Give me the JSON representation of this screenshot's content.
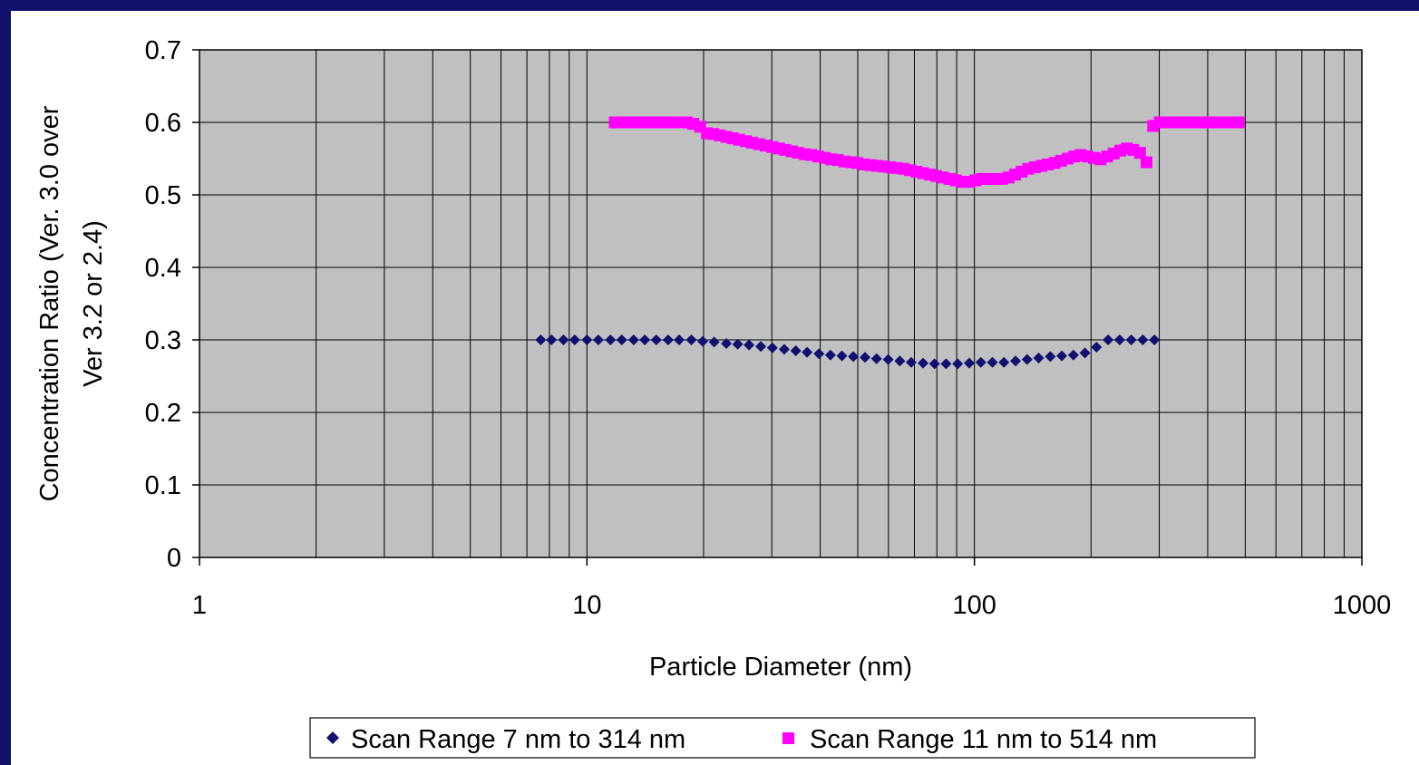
{
  "chart_data": {
    "type": "scatter",
    "title": "",
    "xlabel": "Particle Diameter (nm)",
    "ylabel_lines": [
      "Concentration Ratio (Ver. 3.0 over",
      "Ver 3.2 or 2.4)"
    ],
    "x_scale": "log",
    "xlim": [
      1,
      1000
    ],
    "ylim": [
      0,
      0.7
    ],
    "x_ticks": [
      "1",
      "10",
      "100",
      "1000"
    ],
    "y_ticks": [
      "0",
      "0.1",
      "0.2",
      "0.3",
      "0.4",
      "0.5",
      "0.6",
      "0.7"
    ],
    "grid": true,
    "plot_background": "#c0c0c0",
    "legend_position": "bottom",
    "series": [
      {
        "name": "Scan Range 7 nm to 314 nm",
        "marker": "diamond",
        "color": "#101070",
        "x": [
          7.6,
          8.1,
          8.7,
          9.3,
          10.0,
          10.7,
          11.5,
          12.3,
          13.2,
          14.1,
          15.1,
          16.2,
          17.3,
          18.6,
          19.9,
          21.3,
          22.9,
          24.5,
          26.2,
          28.1,
          30.1,
          32.3,
          34.6,
          37.0,
          39.7,
          42.5,
          45.5,
          48.7,
          52.2,
          55.9,
          59.9,
          64.2,
          68.7,
          73.7,
          78.9,
          84.5,
          90.5,
          97.0,
          103.9,
          111.3,
          119.2,
          127.7,
          136.8,
          146.5,
          157.0,
          168.1,
          180.1,
          192.9,
          206.6,
          221.3,
          237.1,
          254.0,
          272.0,
          291.4
        ],
        "y": [
          0.3,
          0.3,
          0.3,
          0.3,
          0.3,
          0.3,
          0.3,
          0.3,
          0.3,
          0.3,
          0.3,
          0.3,
          0.3,
          0.3,
          0.298,
          0.297,
          0.295,
          0.294,
          0.293,
          0.291,
          0.289,
          0.287,
          0.285,
          0.283,
          0.281,
          0.279,
          0.278,
          0.277,
          0.276,
          0.274,
          0.273,
          0.271,
          0.269,
          0.268,
          0.267,
          0.267,
          0.267,
          0.268,
          0.269,
          0.269,
          0.269,
          0.271,
          0.273,
          0.275,
          0.277,
          0.278,
          0.279,
          0.282,
          0.29,
          0.3,
          0.3,
          0.3,
          0.3,
          0.3
        ]
      },
      {
        "name": "Scan Range 11 nm to 514 nm",
        "marker": "square",
        "color": "#ff00ff",
        "x": [
          11.8,
          12.3,
          12.8,
          13.3,
          13.8,
          14.3,
          14.9,
          15.5,
          16.1,
          16.7,
          17.4,
          18.1,
          18.8,
          19.6,
          20.4,
          21.2,
          22.0,
          22.9,
          23.8,
          24.7,
          25.7,
          26.7,
          27.8,
          28.9,
          30.1,
          31.3,
          32.5,
          33.8,
          35.1,
          36.5,
          38.0,
          39.5,
          41.1,
          42.7,
          44.4,
          46.2,
          48.0,
          49.9,
          51.9,
          54.0,
          56.1,
          58.4,
          60.7,
          63.1,
          65.6,
          68.2,
          70.9,
          73.7,
          76.7,
          79.7,
          82.9,
          86.2,
          89.6,
          93.2,
          96.9,
          100.7,
          104.7,
          108.9,
          113.3,
          117.8,
          122.5,
          127.3,
          132.4,
          137.7,
          143.2,
          148.9,
          154.8,
          161.0,
          167.4,
          174.0,
          181.0,
          188.2,
          195.7,
          203.5,
          211.6,
          220.0,
          228.8,
          237.9,
          247.4,
          257.2,
          267.5,
          278.1,
          289.2,
          300.7,
          312.7,
          325.2,
          338.1,
          351.6,
          365.6,
          380.1,
          395.3,
          411.0,
          427.4,
          444.4,
          462.2,
          480.6
        ],
        "y": [
          0.6,
          0.6,
          0.6,
          0.6,
          0.6,
          0.6,
          0.6,
          0.6,
          0.6,
          0.6,
          0.6,
          0.6,
          0.598,
          0.594,
          0.585,
          0.584,
          0.582,
          0.58,
          0.578,
          0.576,
          0.574,
          0.572,
          0.57,
          0.568,
          0.566,
          0.564,
          0.562,
          0.56,
          0.558,
          0.556,
          0.555,
          0.553,
          0.551,
          0.549,
          0.548,
          0.546,
          0.545,
          0.544,
          0.542,
          0.541,
          0.54,
          0.539,
          0.538,
          0.537,
          0.536,
          0.534,
          0.532,
          0.53,
          0.528,
          0.526,
          0.524,
          0.522,
          0.52,
          0.518,
          0.518,
          0.52,
          0.522,
          0.522,
          0.522,
          0.522,
          0.524,
          0.528,
          0.532,
          0.536,
          0.538,
          0.54,
          0.542,
          0.544,
          0.547,
          0.55,
          0.553,
          0.555,
          0.553,
          0.551,
          0.549,
          0.553,
          0.557,
          0.561,
          0.564,
          0.562,
          0.558,
          0.545,
          0.595,
          0.6,
          0.6,
          0.6,
          0.6,
          0.6,
          0.6,
          0.6,
          0.6,
          0.6,
          0.6,
          0.6,
          0.6,
          0.6
        ]
      }
    ]
  }
}
